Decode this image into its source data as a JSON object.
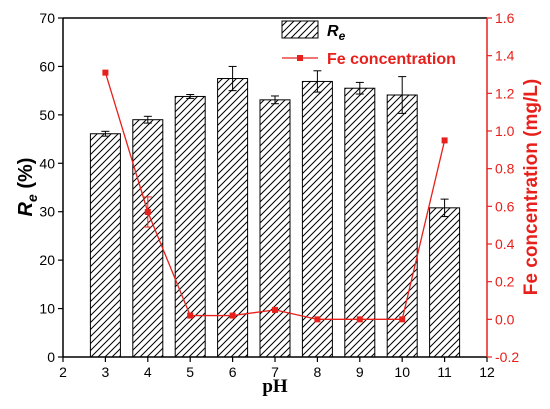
{
  "chart_data": {
    "type": "bar",
    "xlabel": "pH",
    "ylabel_main": "R",
    "ylabel_sub": "e",
    "ylabel_unit": " (%)",
    "y2label": "Fe concentration (mg/L)",
    "xlim": [
      2,
      12
    ],
    "ylim": [
      0,
      70
    ],
    "y2lim": [
      -0.2,
      1.6
    ],
    "xticks": [
      "2",
      "3",
      "4",
      "5",
      "6",
      "7",
      "8",
      "9",
      "10",
      "11",
      "12"
    ],
    "yticks": [
      "0",
      "10",
      "20",
      "30",
      "40",
      "50",
      "60",
      "70"
    ],
    "y2ticks": [
      "-0.2",
      "0.0",
      "0.2",
      "0.4",
      "0.6",
      "0.8",
      "1.0",
      "1.2",
      "1.4",
      "1.6"
    ],
    "legend_position": "top-right",
    "series": [
      {
        "name": "Re",
        "legend_main": "R",
        "legend_sub": "e",
        "kind": "bar",
        "hatch": "diagonal",
        "x": [
          3,
          4,
          5,
          6,
          7,
          8,
          9,
          10,
          11
        ],
        "values": [
          46.1,
          49.0,
          53.8,
          57.5,
          53.1,
          56.9,
          55.5,
          54.1,
          30.8
        ],
        "errors": [
          0.5,
          0.7,
          0.4,
          2.5,
          0.8,
          2.2,
          1.2,
          3.8,
          1.8
        ]
      },
      {
        "name": "Fe concentration",
        "kind": "line",
        "axis": "right",
        "color": "#e8201c",
        "x": [
          3,
          4,
          5,
          6,
          7,
          8,
          9,
          10,
          11
        ],
        "values": [
          1.31,
          0.57,
          0.02,
          0.02,
          0.05,
          0.0,
          0.0,
          0.0,
          0.95
        ],
        "errors": [
          0,
          0.08,
          0,
          0,
          0,
          0,
          0,
          0,
          0
        ]
      }
    ]
  }
}
